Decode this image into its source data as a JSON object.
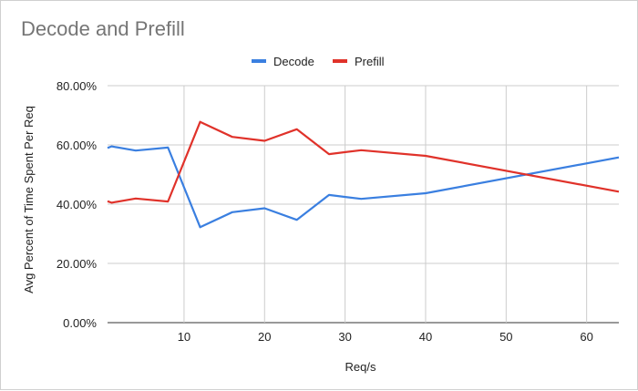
{
  "chart_data": {
    "type": "line",
    "title": "Decode and Prefill",
    "xlabel": "Req/s",
    "ylabel": "Avg Percent of Time Spent Per Req",
    "xlim": [
      0.5,
      64
    ],
    "ylim": [
      0,
      80
    ],
    "x_ticks": [
      10,
      20,
      30,
      40,
      50,
      60
    ],
    "y_ticks": [
      0,
      20,
      40,
      60,
      80
    ],
    "y_tick_labels": [
      "0.00%",
      "20.00%",
      "40.00%",
      "60.00%",
      "80.00%"
    ],
    "grid": true,
    "legend_position": "top",
    "x": [
      0.5,
      1,
      4,
      8,
      12,
      16,
      20,
      24,
      28,
      32,
      40,
      64
    ],
    "series": [
      {
        "name": "Decode",
        "color": "#3a7fe0",
        "values": [
          59,
          59.5,
          58.1,
          59.1,
          32.2,
          37.3,
          38.6,
          34.7,
          43.1,
          41.8,
          43.7,
          55.8
        ]
      },
      {
        "name": "Prefill",
        "color": "#e0322a",
        "values": [
          41,
          40.5,
          41.9,
          40.9,
          67.8,
          62.7,
          61.4,
          65.3,
          56.9,
          58.2,
          56.3,
          44.2
        ]
      }
    ]
  }
}
